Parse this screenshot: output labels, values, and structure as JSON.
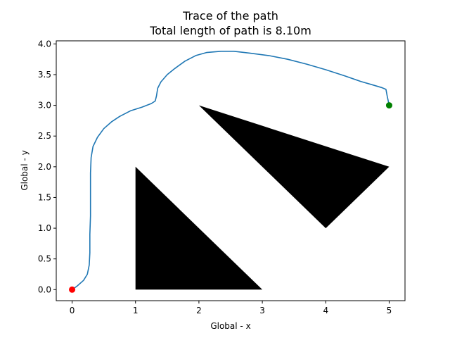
{
  "chart_data": {
    "type": "line",
    "title": "Trace of the path",
    "subtitle": "Total length of path is 8.10m",
    "xlabel": "Global - x",
    "ylabel": "Global - y",
    "xlim": [
      -0.25,
      5.25
    ],
    "ylim": [
      -0.18,
      4.05
    ],
    "xticks": [
      "0",
      "1",
      "2",
      "3",
      "4",
      "5"
    ],
    "yticks": [
      "0.0",
      "0.5",
      "1.0",
      "1.5",
      "2.0",
      "2.5",
      "3.0",
      "3.5",
      "4.0"
    ],
    "grid": false,
    "obstacles": [
      {
        "points": [
          [
            1,
            0
          ],
          [
            1,
            2
          ],
          [
            3,
            0
          ]
        ]
      },
      {
        "points": [
          [
            2,
            3
          ],
          [
            5,
            2
          ],
          [
            4,
            1
          ]
        ]
      }
    ],
    "series": [
      {
        "color": "#1f77b4",
        "points": [
          [
            0,
            0
          ],
          [
            0.08,
            0.06
          ],
          [
            0.18,
            0.15
          ],
          [
            0.24,
            0.25
          ],
          [
            0.27,
            0.4
          ],
          [
            0.28,
            0.6
          ],
          [
            0.28,
            0.9
          ],
          [
            0.29,
            1.2
          ],
          [
            0.29,
            1.6
          ],
          [
            0.29,
            1.9
          ],
          [
            0.3,
            2.15
          ],
          [
            0.33,
            2.33
          ],
          [
            0.4,
            2.48
          ],
          [
            0.5,
            2.62
          ],
          [
            0.62,
            2.73
          ],
          [
            0.75,
            2.82
          ],
          [
            0.92,
            2.91
          ],
          [
            1.1,
            2.97
          ],
          [
            1.25,
            3.03
          ],
          [
            1.31,
            3.07
          ],
          [
            1.33,
            3.15
          ],
          [
            1.35,
            3.28
          ],
          [
            1.4,
            3.38
          ],
          [
            1.5,
            3.5
          ],
          [
            1.62,
            3.6
          ],
          [
            1.78,
            3.72
          ],
          [
            1.95,
            3.81
          ],
          [
            2.12,
            3.86
          ],
          [
            2.35,
            3.88
          ],
          [
            2.55,
            3.88
          ],
          [
            2.8,
            3.85
          ],
          [
            3.1,
            3.81
          ],
          [
            3.4,
            3.75
          ],
          [
            3.7,
            3.67
          ],
          [
            4.0,
            3.58
          ],
          [
            4.3,
            3.48
          ],
          [
            4.55,
            3.39
          ],
          [
            4.75,
            3.33
          ],
          [
            4.88,
            3.29
          ],
          [
            4.95,
            3.26
          ],
          [
            4.97,
            3.15
          ],
          [
            5,
            3
          ]
        ]
      }
    ],
    "start_marker": {
      "x": 0,
      "y": 0,
      "color": "#ff0000"
    },
    "end_marker": {
      "x": 5,
      "y": 3,
      "color": "#008000"
    }
  }
}
